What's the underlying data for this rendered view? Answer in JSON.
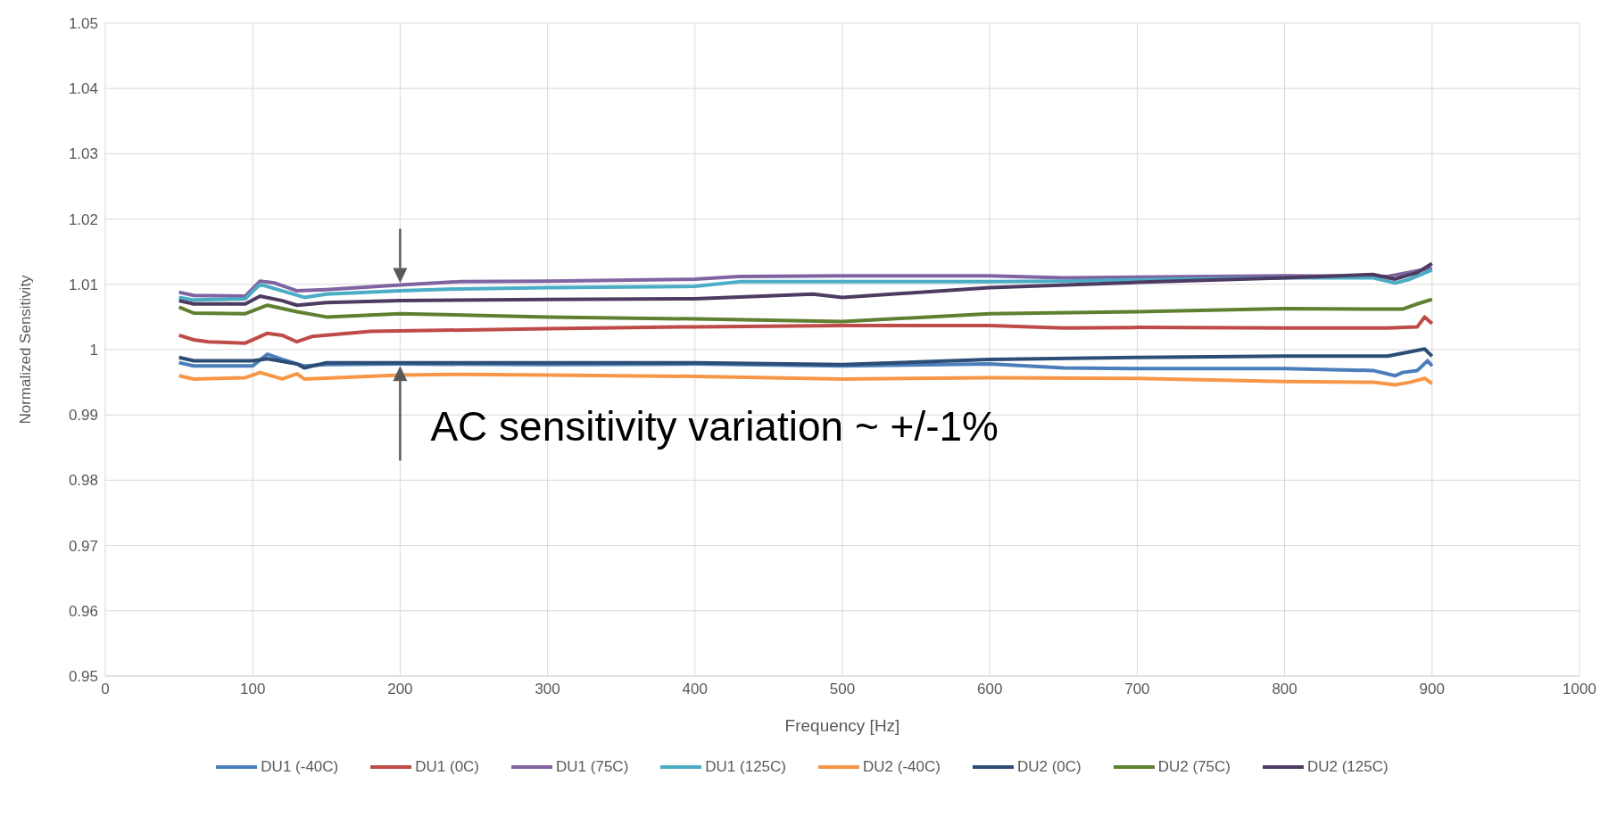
{
  "chart_data": {
    "type": "line",
    "xlabel": "Frequency [Hz]",
    "ylabel": "Normalized Sensitivity",
    "xlim": [
      0,
      1000
    ],
    "xticks": [
      0,
      100,
      200,
      300,
      400,
      500,
      600,
      700,
      800,
      900,
      1000
    ],
    "ylim": [
      0.95,
      1.05
    ],
    "yticks": [
      0.95,
      0.96,
      0.97,
      0.98,
      0.99,
      1,
      1.01,
      1.02,
      1.03,
      1.04,
      1.05
    ],
    "grid": true,
    "legend": "bottom",
    "marker": "none",
    "line_style": "solid",
    "annotations": [
      "AC sensitivity variation ~ +/-1%"
    ],
    "series": [
      {
        "name": "DU1 (-40C)",
        "color": "#4a7ebb",
        "x": [
          50,
          60,
          100,
          110,
          120,
          135,
          150,
          200,
          300,
          400,
          500,
          600,
          650,
          700,
          800,
          860,
          875,
          880,
          890,
          897,
          900
        ],
        "values": [
          0.998,
          0.9975,
          0.9975,
          0.9993,
          0.9985,
          0.9975,
          0.9977,
          0.9978,
          0.9977,
          0.9978,
          0.9975,
          0.9978,
          0.9972,
          0.9971,
          0.9971,
          0.9968,
          0.996,
          0.9965,
          0.9968,
          0.9983,
          0.9975
        ]
      },
      {
        "name": "DU1 (0C)",
        "color": "#be4b48",
        "x": [
          50,
          60,
          70,
          95,
          110,
          120,
          130,
          140,
          180,
          300,
          400,
          500,
          600,
          650,
          700,
          800,
          870,
          890,
          895,
          900
        ],
        "values": [
          1.0022,
          1.0015,
          1.0012,
          1.001,
          1.0025,
          1.0022,
          1.0012,
          1.002,
          1.0028,
          1.0032,
          1.0035,
          1.0037,
          1.0037,
          1.0033,
          1.0034,
          1.0033,
          1.0033,
          1.0035,
          1.005,
          1.004
        ]
      },
      {
        "name": "DU1 (75C)",
        "color": "#8064a2",
        "x": [
          50,
          60,
          95,
          105,
          115,
          130,
          150,
          200,
          240,
          300,
          400,
          430,
          500,
          600,
          650,
          800,
          870,
          900
        ],
        "values": [
          1.0088,
          1.0083,
          1.0082,
          1.0105,
          1.0102,
          1.009,
          1.0092,
          1.0099,
          1.0104,
          1.0105,
          1.0108,
          1.0112,
          1.0113,
          1.0113,
          1.011,
          1.0113,
          1.0112,
          1.0125
        ]
      },
      {
        "name": "DU1 (125C)",
        "color": "#4bacc6",
        "x": [
          50,
          60,
          95,
          105,
          120,
          135,
          150,
          200,
          240,
          300,
          400,
          430,
          600,
          650,
          700,
          800,
          860,
          875,
          885,
          900
        ],
        "values": [
          1.008,
          1.0076,
          1.0078,
          1.01,
          1.009,
          1.008,
          1.0085,
          1.009,
          1.0093,
          1.0095,
          1.0097,
          1.0104,
          1.0104,
          1.0105,
          1.0107,
          1.011,
          1.011,
          1.0102,
          1.0108,
          1.0122
        ]
      },
      {
        "name": "DU2 (-40C)",
        "color": "#f79646",
        "x": [
          50,
          60,
          95,
          105,
          120,
          130,
          135,
          200,
          240,
          300,
          400,
          500,
          600,
          700,
          800,
          860,
          875,
          885,
          895,
          900
        ],
        "values": [
          0.996,
          0.9955,
          0.9957,
          0.9965,
          0.9955,
          0.9963,
          0.9955,
          0.9961,
          0.9962,
          0.9961,
          0.9959,
          0.9955,
          0.9957,
          0.9956,
          0.9951,
          0.995,
          0.9946,
          0.995,
          0.9956,
          0.9948
        ]
      },
      {
        "name": "DU2 (0C)",
        "color": "#2c4d75",
        "x": [
          50,
          60,
          100,
          110,
          130,
          135,
          150,
          200,
          300,
          400,
          500,
          600,
          700,
          800,
          870,
          895,
          900
        ],
        "values": [
          0.9988,
          0.9983,
          0.9983,
          0.9986,
          0.9978,
          0.9972,
          0.998,
          0.998,
          0.998,
          0.998,
          0.9977,
          0.9985,
          0.9988,
          0.999,
          0.999,
          1.0001,
          0.999
        ]
      },
      {
        "name": "DU2 (75C)",
        "color": "#5f7f31",
        "x": [
          50,
          60,
          95,
          110,
          130,
          150,
          200,
          300,
          400,
          500,
          600,
          700,
          800,
          870,
          880,
          890,
          900
        ],
        "values": [
          1.0065,
          1.0056,
          1.0055,
          1.0068,
          1.0058,
          1.005,
          1.0055,
          1.005,
          1.0047,
          1.0043,
          1.0055,
          1.0058,
          1.0063,
          1.0062,
          1.0062,
          1.007,
          1.0077
        ]
      },
      {
        "name": "DU2 (125C)",
        "color": "#4d3b62",
        "x": [
          50,
          60,
          95,
          105,
          120,
          130,
          150,
          200,
          300,
          400,
          480,
          500,
          600,
          700,
          800,
          860,
          875,
          890,
          900
        ],
        "values": [
          1.0075,
          1.007,
          1.007,
          1.0082,
          1.0075,
          1.0068,
          1.0072,
          1.0075,
          1.0077,
          1.0078,
          1.0085,
          1.008,
          1.0095,
          1.0103,
          1.011,
          1.0115,
          1.0108,
          1.0118,
          1.0132
        ]
      }
    ]
  }
}
